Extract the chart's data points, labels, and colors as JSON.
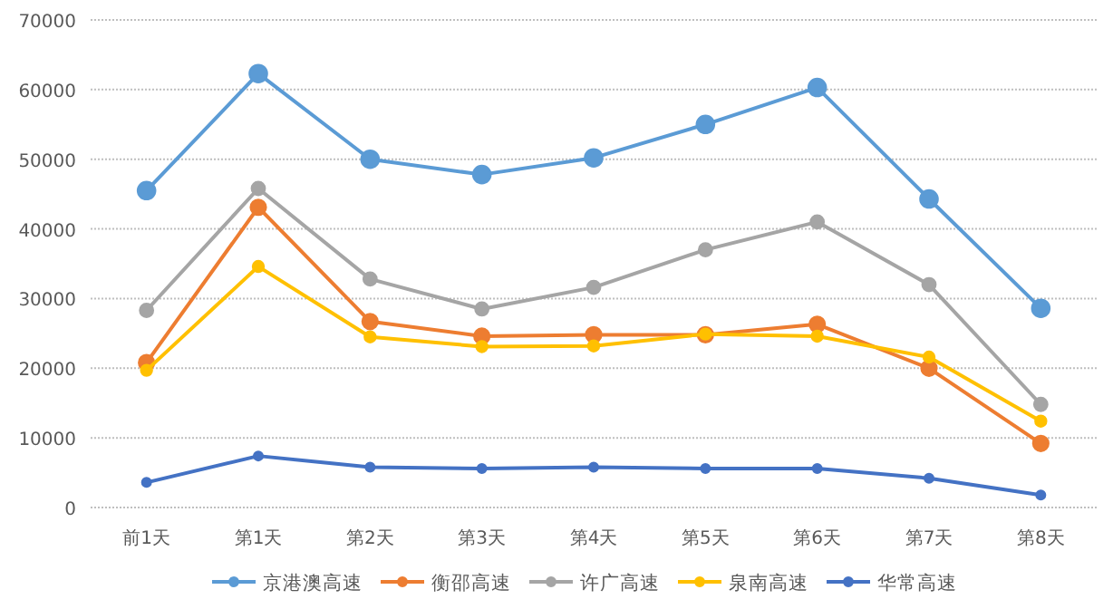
{
  "chart_data": {
    "type": "line",
    "categories": [
      "前1天",
      "第1天",
      "第2天",
      "第3天",
      "第4天",
      "第5天",
      "第6天",
      "第7天",
      "第8天"
    ],
    "series": [
      {
        "name": "京港澳高速",
        "color": "#5b9bd5",
        "values": [
          45500,
          62300,
          50000,
          47800,
          50200,
          55000,
          60300,
          44300,
          28600
        ]
      },
      {
        "name": "衡邵高速",
        "color": "#ed7d31",
        "values": [
          20800,
          43100,
          26700,
          24600,
          24800,
          24800,
          26300,
          20000,
          9200
        ]
      },
      {
        "name": "许广高速",
        "color": "#a5a5a5",
        "values": [
          28300,
          45800,
          32800,
          28500,
          31600,
          37000,
          41000,
          32000,
          14800
        ]
      },
      {
        "name": "泉南高速",
        "color": "#ffc000",
        "values": [
          19700,
          34600,
          24500,
          23100,
          23200,
          24900,
          24600,
          21600,
          12400
        ]
      },
      {
        "name": "华常高速",
        "color": "#4472c4",
        "values": [
          3600,
          7400,
          5800,
          5600,
          5800,
          5600,
          5600,
          4200,
          1800
        ]
      }
    ],
    "ylim": [
      0,
      70000
    ],
    "yticks": [
      0,
      10000,
      20000,
      30000,
      40000,
      50000,
      60000,
      70000
    ],
    "grid": "y",
    "legend": "bottom",
    "marker": "circle",
    "line_style": "solid"
  }
}
